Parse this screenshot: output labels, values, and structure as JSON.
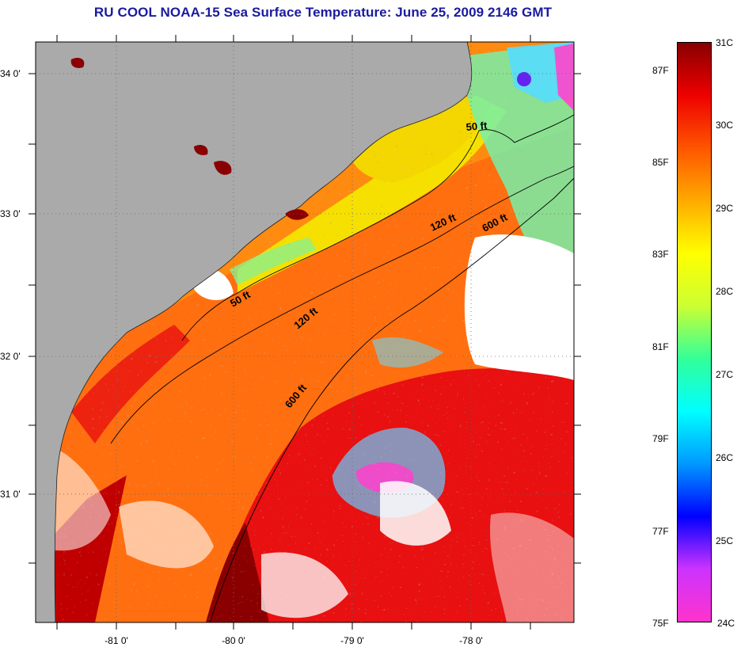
{
  "title": "RU COOL  NOAA-15  Sea Surface Temperature:  June 25, 2009 2146 GMT",
  "map": {
    "lon_labels": [
      "-81 0'",
      "-80 0'",
      "-79 0'",
      "-78 0'"
    ],
    "lat_labels": [
      "34 0'",
      "33 0'",
      "32 0'",
      "31 0'"
    ],
    "contours": [
      {
        "label": "50 ft",
        "depth_ft": 50
      },
      {
        "label": "120 ft",
        "depth_ft": 120
      },
      {
        "label": "600 ft",
        "depth_ft": 600
      }
    ],
    "contour_labels": [
      "50 ft",
      "50 ft",
      "120 ft",
      "120 ft",
      "600 ft",
      "600 ft"
    ],
    "land_color": "#aaaaaa",
    "cloud_color": "#ffffff"
  },
  "colorbar": {
    "celsius_labels": [
      "31C",
      "30C",
      "29C",
      "28C",
      "27C",
      "26C",
      "25C",
      "24C"
    ],
    "fahrenheit_labels": [
      "87F",
      "85F",
      "83F",
      "81F",
      "79F",
      "77F",
      "75F"
    ],
    "range_c": [
      24,
      31
    ],
    "colors": [
      "#ff33cc",
      "#cc33ff",
      "#0000ff",
      "#0099ff",
      "#00ffff",
      "#33ff99",
      "#ccff33",
      "#ffff00",
      "#ffaa00",
      "#ff5500",
      "#ee0000",
      "#880000"
    ]
  }
}
